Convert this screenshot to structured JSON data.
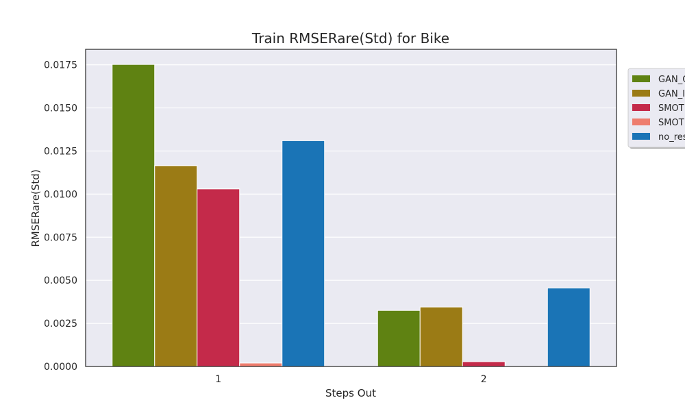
{
  "chart_data": {
    "type": "bar",
    "title": "Train RMSERare(Std) for Bike",
    "xlabel": "Steps Out",
    "ylabel": "RMSERare(Std)",
    "categories": [
      "1",
      "2"
    ],
    "ylim": [
      0,
      0.0184
    ],
    "yticks": [
      "0.0000",
      "0.0025",
      "0.0050",
      "0.0075",
      "0.0100",
      "0.0125",
      "0.0150",
      "0.0175"
    ],
    "grid": true,
    "legend_position": "outside-right",
    "series": [
      {
        "name": "GAN_C",
        "color": "#5f8212",
        "values": [
          0.01752,
          0.00325
        ]
      },
      {
        "name": "GAN_I",
        "color": "#9b7b15",
        "values": [
          0.01165,
          0.00345
        ]
      },
      {
        "name": "SMOT",
        "color": "#c42a4a",
        "values": [
          0.0103,
          0.00028
        ]
      },
      {
        "name": "SMOT",
        "color": "#ee7d6e",
        "values": [
          0.0002,
          0.0
        ]
      },
      {
        "name": "no_res",
        "color": "#1a74b6",
        "values": [
          0.0131,
          0.00455
        ]
      }
    ]
  }
}
